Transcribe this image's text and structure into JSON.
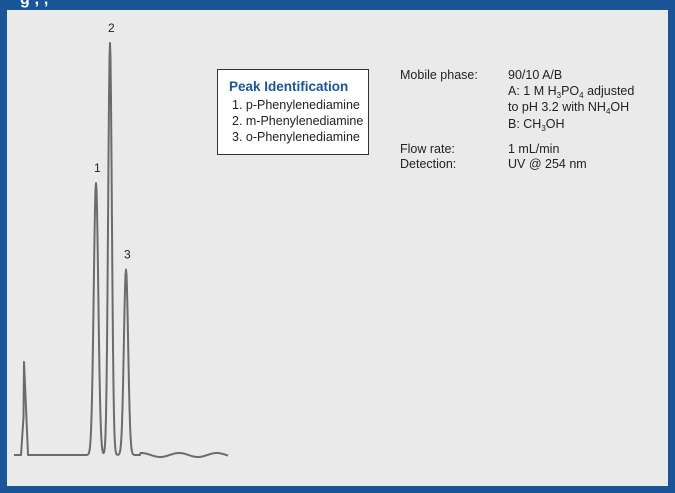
{
  "header": {
    "title_fragment": "g       ,     ,   "
  },
  "chart_data": {
    "type": "line",
    "title": "",
    "xlabel": "",
    "ylabel": "",
    "grid": false,
    "peak_labels": [
      "1",
      "2",
      "3"
    ],
    "peaks": [
      {
        "label": "1",
        "compound": "p-Phenylenediamine",
        "relative_height": 0.66
      },
      {
        "label": "2",
        "compound": "m-Phenylenediamine",
        "relative_height": 1.0
      },
      {
        "label": "3",
        "compound": "o-Phenylenediamine",
        "relative_height": 0.45
      }
    ],
    "trace_color": "#6b6b6b"
  },
  "peak_identification": {
    "title": "Peak Identification",
    "items": [
      "1. p-Phenylenediamine",
      "2. m-Phenylenediamine",
      "3. o-Phenylenediamine"
    ]
  },
  "conditions": {
    "mobile_phase_label": "Mobile phase:",
    "mobile_phase_value": "90/10 A/B",
    "mobile_phase_a_prefix": "A: 1 M H",
    "mobile_phase_a_sub1": "3",
    "mobile_phase_a_mid": "PO",
    "mobile_phase_a_sub2": "4",
    "mobile_phase_a_suffix": " adjusted",
    "mobile_phase_a_line2_prefix": "to pH 3.2 with NH",
    "mobile_phase_a_line2_sub": "4",
    "mobile_phase_a_line2_suffix": "OH",
    "mobile_phase_b_prefix": "B: CH",
    "mobile_phase_b_sub": "3",
    "mobile_phase_b_suffix": "OH",
    "flow_rate_label": "Flow rate:",
    "flow_rate_value": "1 mL/min",
    "detection_label": "Detection:",
    "detection_value": "UV @ 254 nm"
  },
  "colors": {
    "brand_blue": "#1a5597",
    "panel_background": "#eaeaea",
    "trace": "#6b6b6b"
  }
}
